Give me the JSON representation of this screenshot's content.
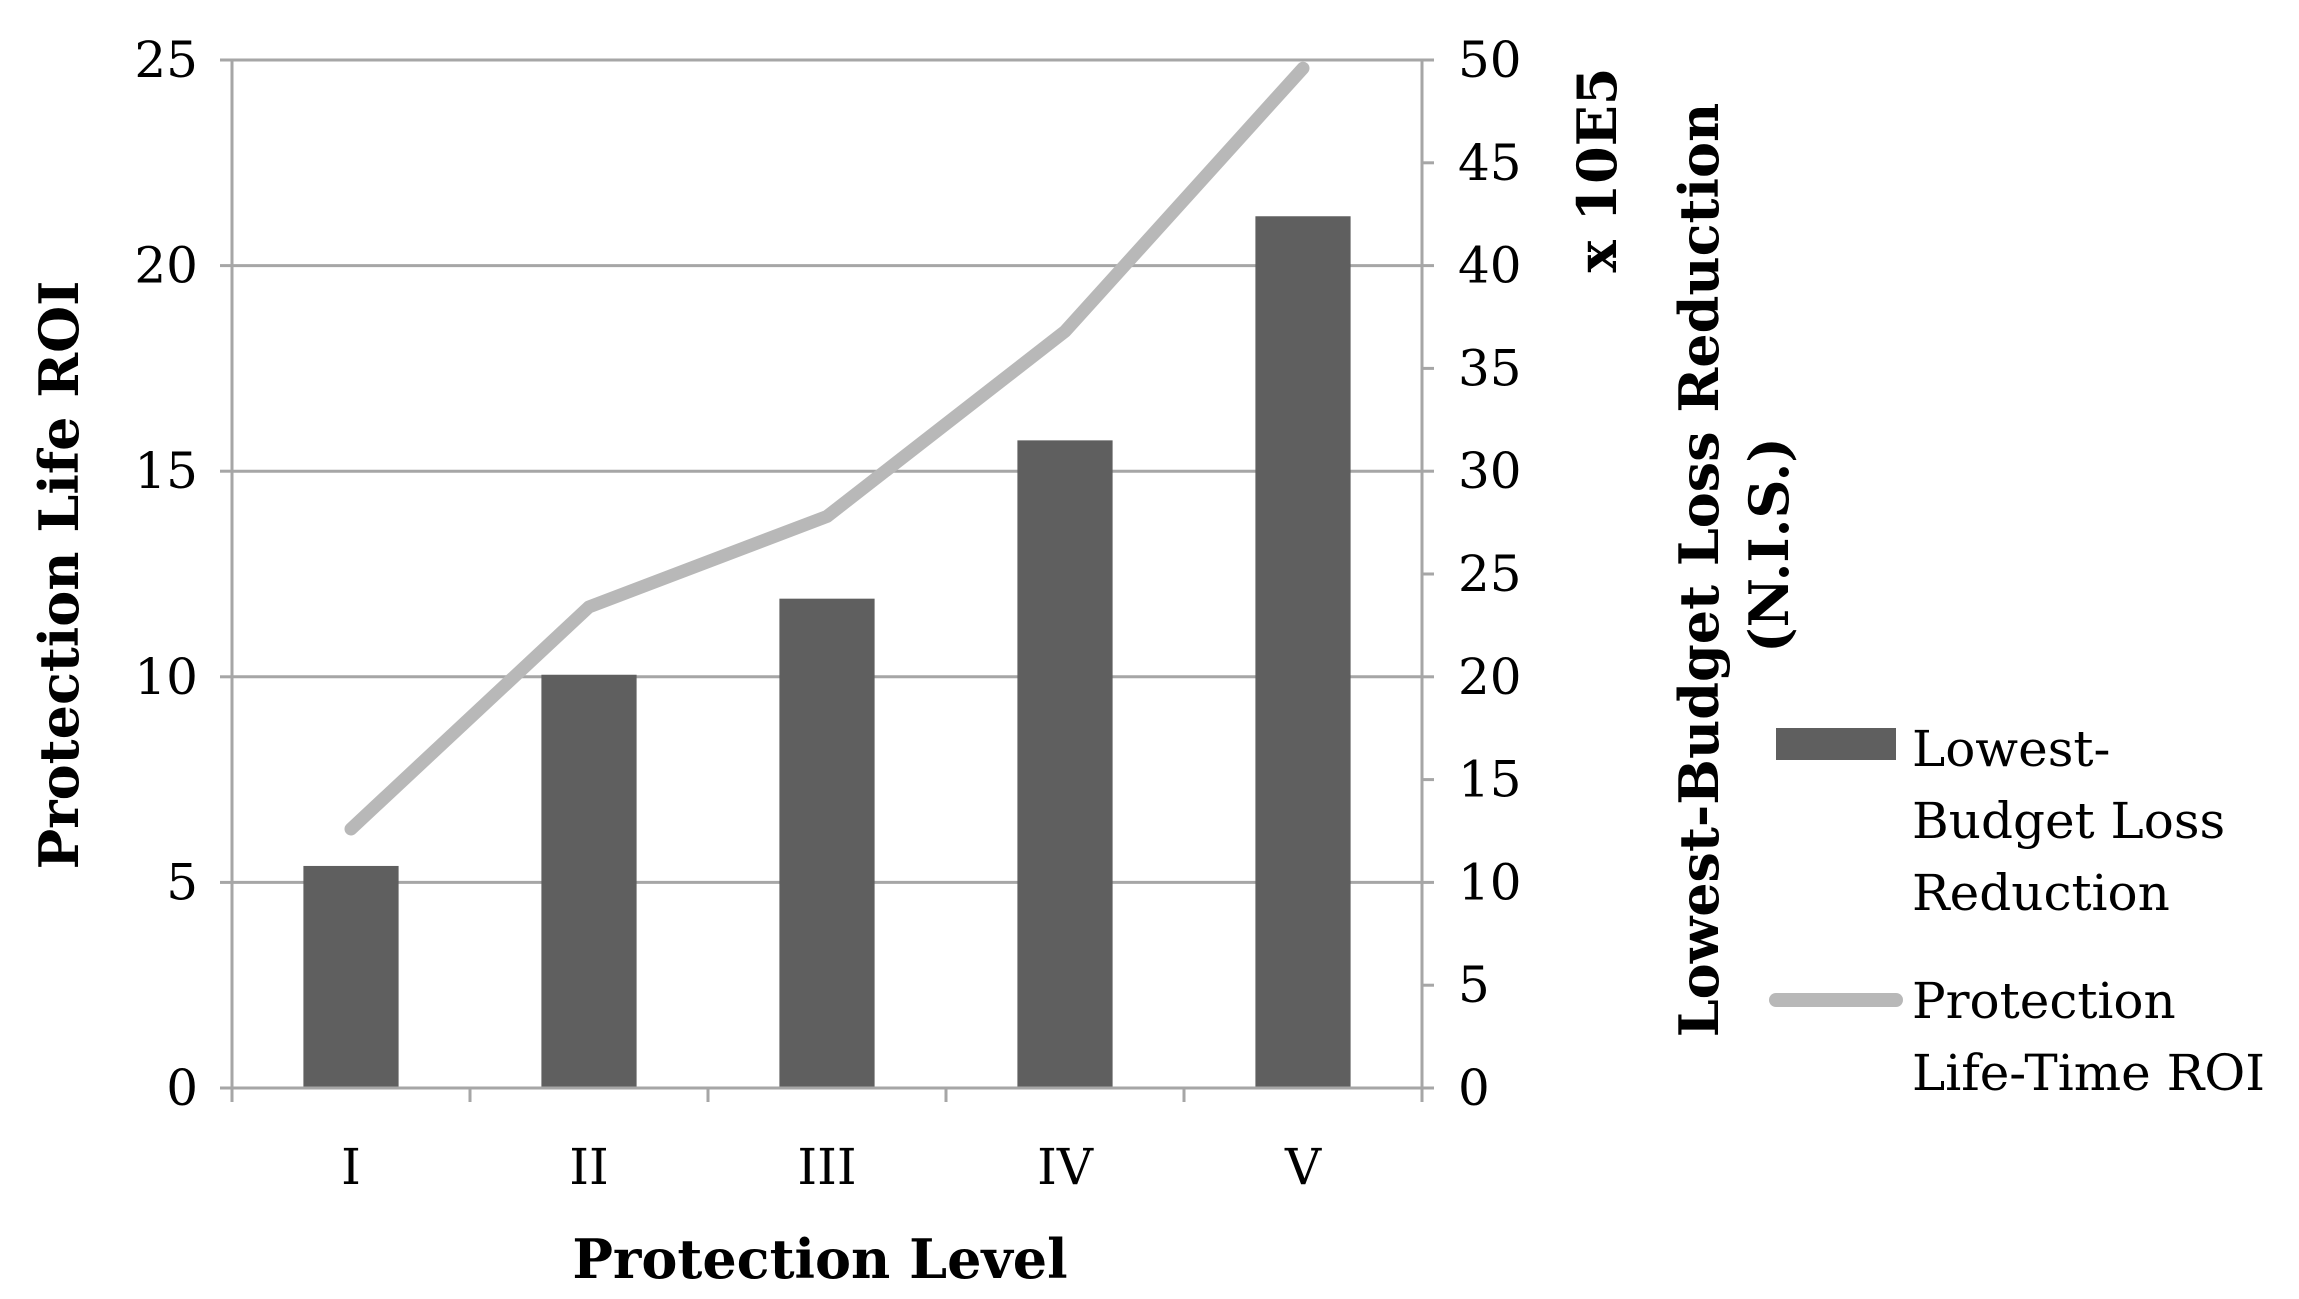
{
  "chart_data": {
    "type": "bar",
    "categories": [
      "I",
      "II",
      "III",
      "IV",
      "V"
    ],
    "xlabel": "Protection Level",
    "ylabel_left": "Protection Life ROI",
    "ylabel_right_line1": "Lowest-Budget Loss Reduction",
    "ylabel_right_line2": "(N.I.S.)",
    "right_axis_multiplier": "x 10E5",
    "ylim_left": [
      0,
      25
    ],
    "yticks_left": [
      0,
      5,
      10,
      15,
      20,
      25
    ],
    "ylim_right": [
      0,
      50
    ],
    "yticks_right": [
      0,
      5,
      10,
      15,
      20,
      25,
      30,
      35,
      40,
      45,
      50
    ],
    "grid": true,
    "legend_position": "right",
    "series": [
      {
        "name": "Lowest-Budget Loss Reduction",
        "legend_lines": [
          "Lowest-",
          "Budget Loss",
          "Reduction"
        ],
        "kind": "bar",
        "axis": "right",
        "color": "#5f5f5f",
        "values": [
          10.8,
          20.1,
          23.8,
          31.5,
          42.4
        ]
      },
      {
        "name": "Protection Life-Time ROI",
        "legend_lines": [
          "Protection",
          "Life-Time ROI"
        ],
        "kind": "line",
        "axis": "left",
        "color": "#b8b8b8",
        "values": [
          6.3,
          11.7,
          13.9,
          18.4,
          24.8
        ]
      }
    ]
  }
}
